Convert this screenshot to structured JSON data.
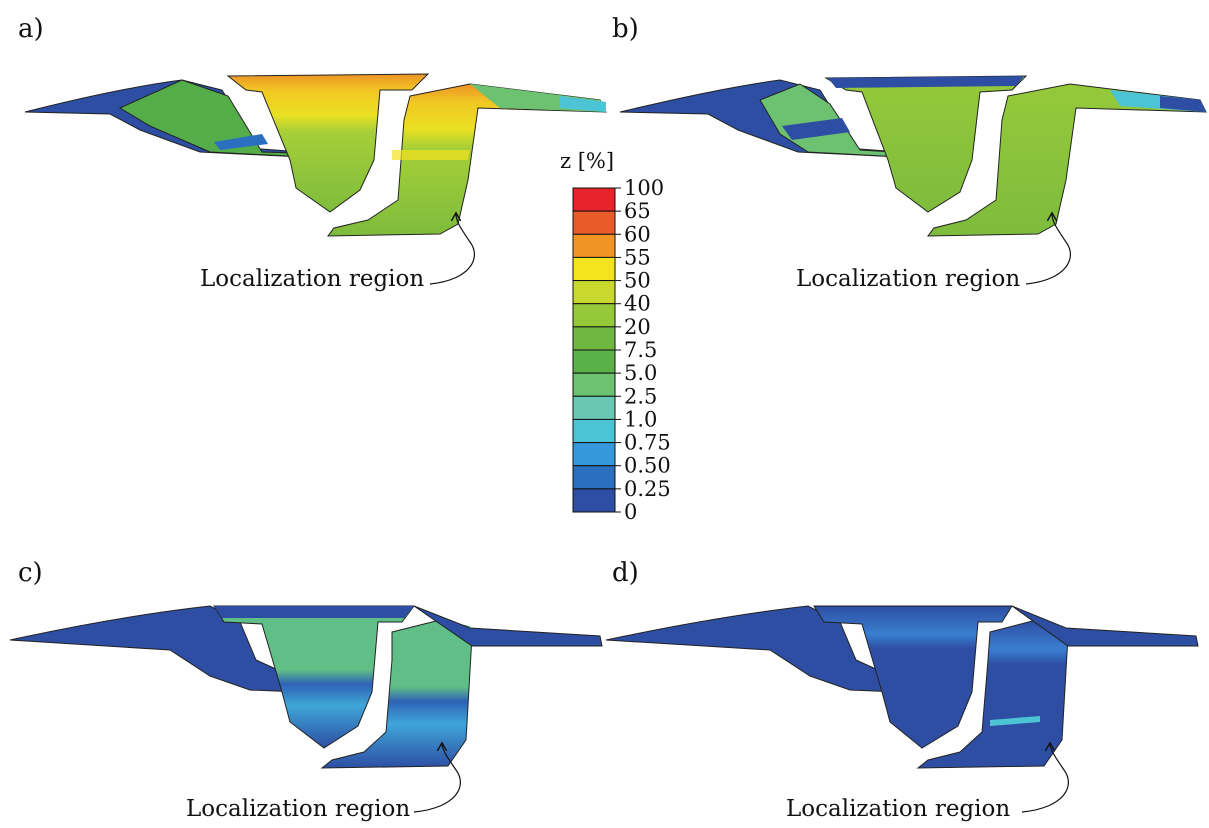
{
  "panels": [
    {
      "label": "a)",
      "annotation": "Localization region"
    },
    {
      "label": "b)",
      "annotation": "Localization region"
    },
    {
      "label": "c)",
      "annotation": "Localization region"
    },
    {
      "label": "d)",
      "annotation": "Localization region"
    }
  ],
  "colorbar": {
    "title": "z [%]",
    "ticks": [
      "100",
      "65",
      "60",
      "55",
      "50",
      "40",
      "20",
      "7.5",
      "5.0",
      "2.5",
      "1.0",
      "0.75",
      "0.50",
      "0.25",
      "0"
    ],
    "colors": [
      "#e8232a",
      "#ea5b2b",
      "#f29424",
      "#f5e31e",
      "#c8d82c",
      "#95c93a",
      "#6fb741",
      "#5ab147",
      "#6cc270",
      "#69c8b2",
      "#4cc4d6",
      "#3597dc",
      "#2a6fc0",
      "#2d4ea3"
    ]
  }
}
